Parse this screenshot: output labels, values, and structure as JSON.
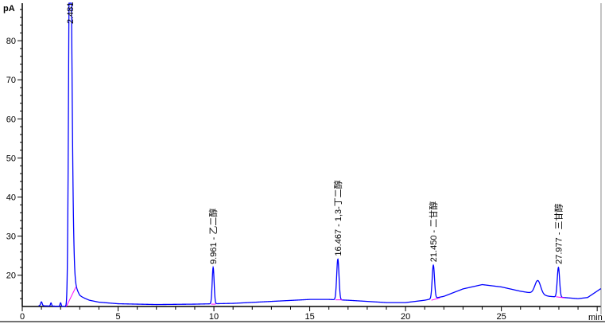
{
  "chart_data": {
    "type": "line",
    "title": "",
    "xlabel": "min",
    "ylabel": "pA",
    "xlim": [
      0,
      30.2
    ],
    "ylim": [
      12.0,
      89.6
    ],
    "x_ticks": [
      0,
      5,
      10,
      15,
      20,
      25
    ],
    "y_ticks": [
      20,
      30,
      40,
      50,
      60,
      70,
      80
    ],
    "grid": false,
    "colors": {
      "trace": "#0000ff",
      "baseline": "#ff00ff",
      "axis": "#000000"
    },
    "baseline": [
      [
        0.0,
        12.2
      ],
      [
        0.9,
        12.2
      ],
      [
        2.3,
        12.0
      ],
      [
        2.7,
        16.5
      ],
      [
        3.0,
        14.6
      ],
      [
        3.5,
        13.6
      ],
      [
        4.0,
        13.1
      ],
      [
        5.0,
        12.7
      ],
      [
        7.0,
        12.5
      ],
      [
        9.0,
        12.6
      ],
      [
        11.0,
        12.8
      ],
      [
        13.0,
        13.3
      ],
      [
        15.0,
        13.8
      ],
      [
        16.0,
        13.8
      ],
      [
        17.0,
        13.6
      ],
      [
        19.0,
        13.0
      ],
      [
        20.0,
        13.0
      ],
      [
        21.0,
        13.6
      ],
      [
        22.0,
        14.6
      ],
      [
        23.0,
        16.5
      ],
      [
        24.0,
        17.6
      ],
      [
        25.0,
        17.0
      ],
      [
        26.0,
        15.9
      ],
      [
        26.5,
        15.5
      ],
      [
        27.5,
        14.6
      ],
      [
        29.0,
        14.0
      ],
      [
        29.5,
        14.3
      ],
      [
        30.2,
        16.6
      ]
    ],
    "peaks": [
      {
        "rt": 1.0,
        "height": 1.0,
        "width": 0.04,
        "label": ""
      },
      {
        "rt": 1.5,
        "height": 0.8,
        "width": 0.03,
        "label": ""
      },
      {
        "rt": 2.0,
        "height": 0.9,
        "width": 0.03,
        "label": ""
      },
      {
        "rt": 2.481,
        "height": 100,
        "width": 0.06,
        "label": "2.481"
      },
      {
        "rt": 9.961,
        "height": 9.3,
        "width": 0.05,
        "label": "9.961 - 乙二醇"
      },
      {
        "rt": 16.467,
        "height": 10.4,
        "width": 0.06,
        "label": "16.467 - 1,3-丁二醇"
      },
      {
        "rt": 21.45,
        "height": 8.5,
        "width": 0.06,
        "label": "21.450 - 二甘醇"
      },
      {
        "rt": 26.9,
        "height": 3.5,
        "width": 0.15,
        "label": ""
      },
      {
        "rt": 27.977,
        "height": 7.6,
        "width": 0.06,
        "label": "27.977 - 三甘醇"
      }
    ],
    "integration_baselines": [
      [
        [
          2.3,
          12.0
        ],
        [
          2.8,
          17.0
        ]
      ],
      [
        [
          9.85,
          12.6
        ],
        [
          10.1,
          12.6
        ]
      ],
      [
        [
          16.35,
          13.7
        ],
        [
          16.7,
          13.7
        ]
      ],
      [
        [
          21.35,
          13.6
        ],
        [
          21.8,
          14.2
        ]
      ],
      [
        [
          27.85,
          14.5
        ],
        [
          28.3,
          14.2
        ]
      ]
    ]
  }
}
